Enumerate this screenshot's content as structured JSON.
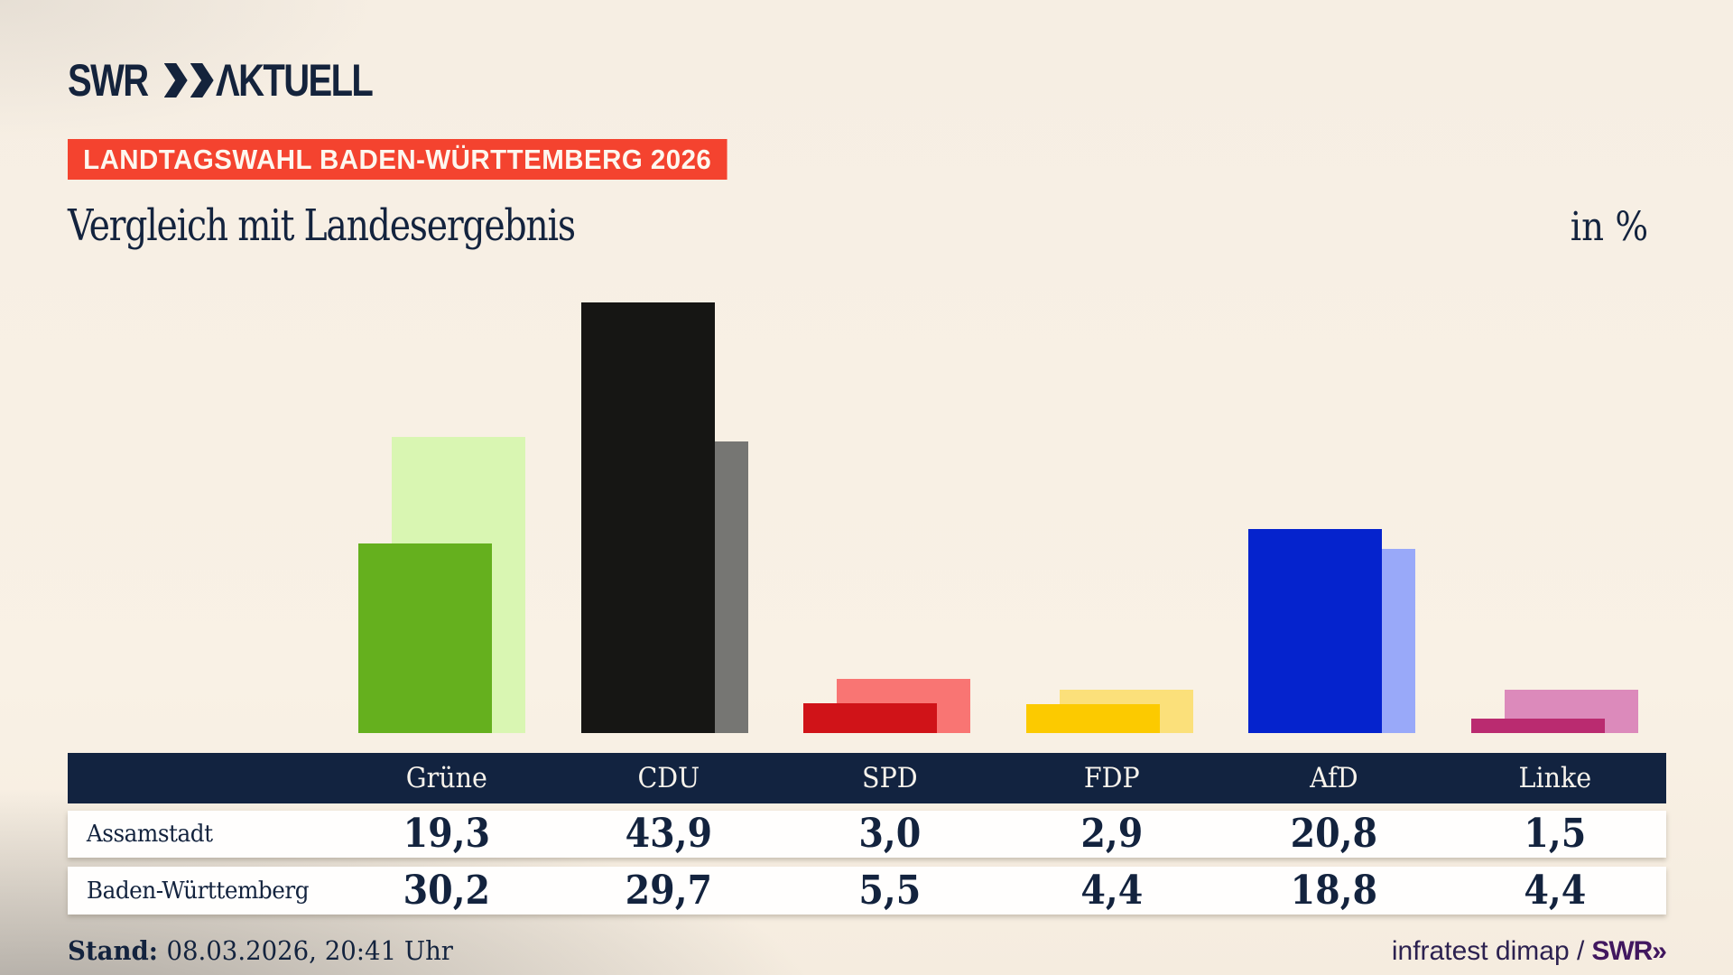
{
  "header": {
    "logo_swr": "SWR",
    "logo_aktuell": "ΛKTUELL",
    "badge": "LANDTAGSWAHL BADEN-WÜRTTEMBERG 2026",
    "title": "Vergleich mit Landesergebnis",
    "unit": "in %"
  },
  "chart_data": {
    "type": "bar",
    "categories": [
      "Grüne",
      "CDU",
      "SPD",
      "FDP",
      "AfD",
      "Linke"
    ],
    "series": [
      {
        "name": "Assamstadt",
        "values": [
          19.3,
          43.9,
          3.0,
          2.9,
          20.8,
          1.5
        ]
      },
      {
        "name": "Baden-Württemberg",
        "values": [
          30.2,
          29.7,
          5.5,
          4.4,
          18.8,
          4.4
        ]
      }
    ],
    "front_colors": [
      "#65b01e",
      "#161614",
      "#d01318",
      "#fcca00",
      "#0523cd",
      "#ba2b70"
    ],
    "back_colors": [
      "#d9f6b2",
      "#767673",
      "#f97573",
      "#fbe07a",
      "#99a9f9",
      "#dc8abb"
    ],
    "title": "Vergleich mit Landesergebnis",
    "ylabel": "in %",
    "ylim": [
      0,
      45
    ],
    "grid": false,
    "legend": "table-rows"
  },
  "table": {
    "row_labels": [
      "Assamstadt",
      "Baden-Württemberg"
    ],
    "display_values": [
      [
        "19,3",
        "43,9",
        "3,0",
        "2,9",
        "20,8",
        "1,5"
      ],
      [
        "30,2",
        "29,7",
        "5,5",
        "4,4",
        "18,8",
        "4,4"
      ]
    ]
  },
  "footer": {
    "stand_label": "Stand:",
    "stand_value": "08.03.2026, 20:41 Uhr",
    "source": "infratest dimap /",
    "source_brand": "SWR»"
  },
  "colors": {
    "navy": "#13233e",
    "table_header_bg": "#122340",
    "badge_red": "#f4432f",
    "background_cream": "#f8f0e4",
    "footer_purple": "#41175f"
  }
}
